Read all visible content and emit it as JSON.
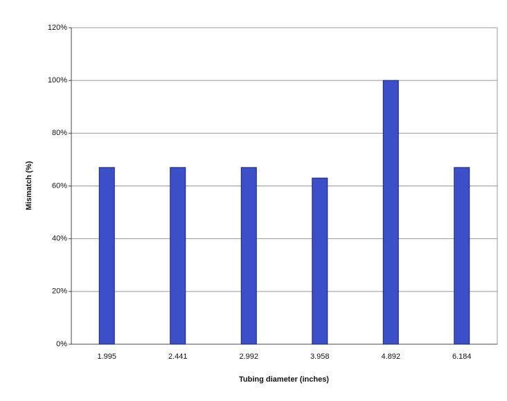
{
  "chart_data": {
    "type": "bar",
    "x_label": "Tubing diameter (inches)",
    "y_label": "Mismatch (%)",
    "categories": [
      "1.995",
      "2.441",
      "2.992",
      "3.958",
      "4.892",
      "6.184"
    ],
    "values": [
      67,
      67,
      67,
      63,
      100,
      67
    ],
    "color": "#3b4fc8",
    "ylim": [
      0,
      120
    ],
    "yticks": [
      {
        "value": 0,
        "label": "0%"
      },
      {
        "value": 20,
        "label": "20%"
      },
      {
        "value": 40,
        "label": "40%"
      },
      {
        "value": 60,
        "label": "60%"
      },
      {
        "value": 80,
        "label": "80%"
      },
      {
        "value": 100,
        "label": "100%"
      },
      {
        "value": 120,
        "label": "120%"
      }
    ],
    "grid": true
  }
}
